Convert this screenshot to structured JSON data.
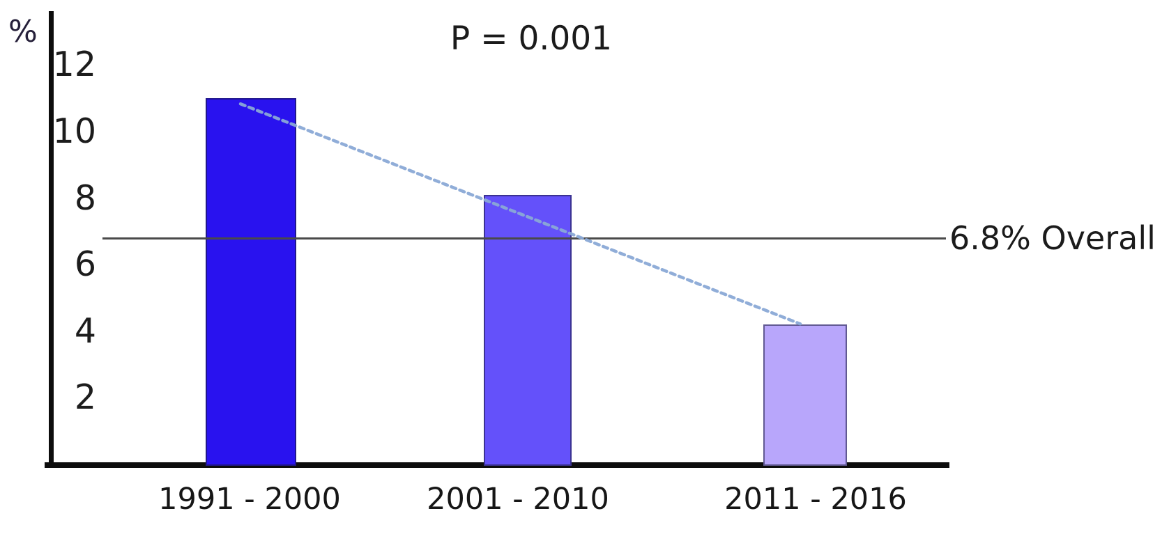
{
  "chart_data": {
    "type": "bar",
    "title": "",
    "annotation": "P = 0.001",
    "ylabel": "%",
    "xlabel": "",
    "categories": [
      "1991 - 2000",
      "2001 - 2010",
      "2011 - 2016"
    ],
    "values": [
      11.0,
      8.1,
      4.2
    ],
    "bar_colors": [
      "#2912ef",
      "#6451fa",
      "#b8a6fb"
    ],
    "yticks": [
      2,
      4,
      6,
      8,
      10,
      12
    ],
    "ylim": [
      0,
      13.6
    ],
    "grid": false,
    "legend": "none",
    "reference_line": {
      "value": 6.8,
      "label": "6.8% Overall",
      "color": "#4a4a4a"
    },
    "trend_line": {
      "from_category": "1991 - 2000",
      "from_value": 11.0,
      "to_category": "2011 - 2016",
      "to_value": 4.2,
      "style": "dashed",
      "color": "#8aa9d6"
    },
    "axis_color": "#0d0d0d",
    "text_color": "#1c1c1c"
  }
}
